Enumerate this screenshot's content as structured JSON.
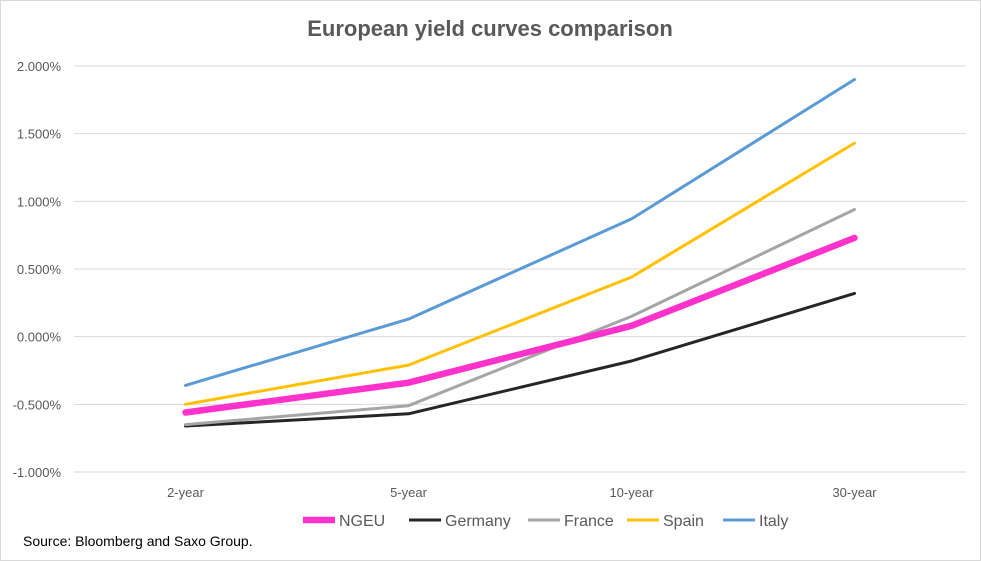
{
  "chart_data": {
    "type": "line",
    "title": "European yield curves comparison",
    "categories": [
      "2-year",
      "5-year",
      "10-year",
      "30-year"
    ],
    "y_ticks": [
      "2.000%",
      "1.500%",
      "1.000%",
      "0.500%",
      "0.000%",
      "-0.500%",
      "-1.000%"
    ],
    "ylim": [
      -1.0,
      2.0
    ],
    "grid": true,
    "legend_position": "bottom",
    "series": [
      {
        "name": "NGEU",
        "color": "#ff33cc",
        "values": [
          -0.56,
          -0.34,
          0.08,
          0.73
        ]
      },
      {
        "name": "Germany",
        "color": "#262626",
        "values": [
          -0.66,
          -0.57,
          -0.18,
          0.32
        ]
      },
      {
        "name": "France",
        "color": "#a5a5a5",
        "values": [
          -0.65,
          -0.51,
          0.15,
          0.94
        ]
      },
      {
        "name": "Spain",
        "color": "#ffc000",
        "values": [
          -0.5,
          -0.21,
          0.44,
          1.43
        ]
      },
      {
        "name": "Italy",
        "color": "#5b9bd5",
        "values": [
          -0.36,
          0.13,
          0.87,
          1.9
        ]
      }
    ]
  },
  "source_text": "Source: Bloomberg and Saxo Group."
}
